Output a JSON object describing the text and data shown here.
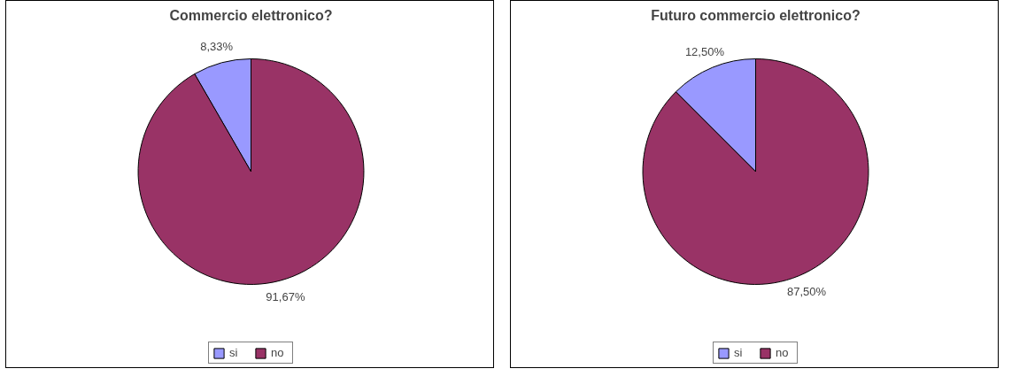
{
  "chart_data": [
    {
      "type": "pie",
      "title": "Commercio elettronico?",
      "categories": [
        "si",
        "no"
      ],
      "values": [
        8.33,
        91.67
      ],
      "colors": [
        "#9999ff",
        "#993366"
      ],
      "value_labels": [
        "8,33%",
        "91,67%"
      ],
      "legend": "bottom"
    },
    {
      "type": "pie",
      "title": "Futuro commercio elettronico?",
      "categories": [
        "si",
        "no"
      ],
      "values": [
        12.5,
        87.5
      ],
      "colors": [
        "#9999ff",
        "#993366"
      ],
      "value_labels": [
        "12,50%",
        "87,50%"
      ],
      "legend": "bottom"
    }
  ]
}
